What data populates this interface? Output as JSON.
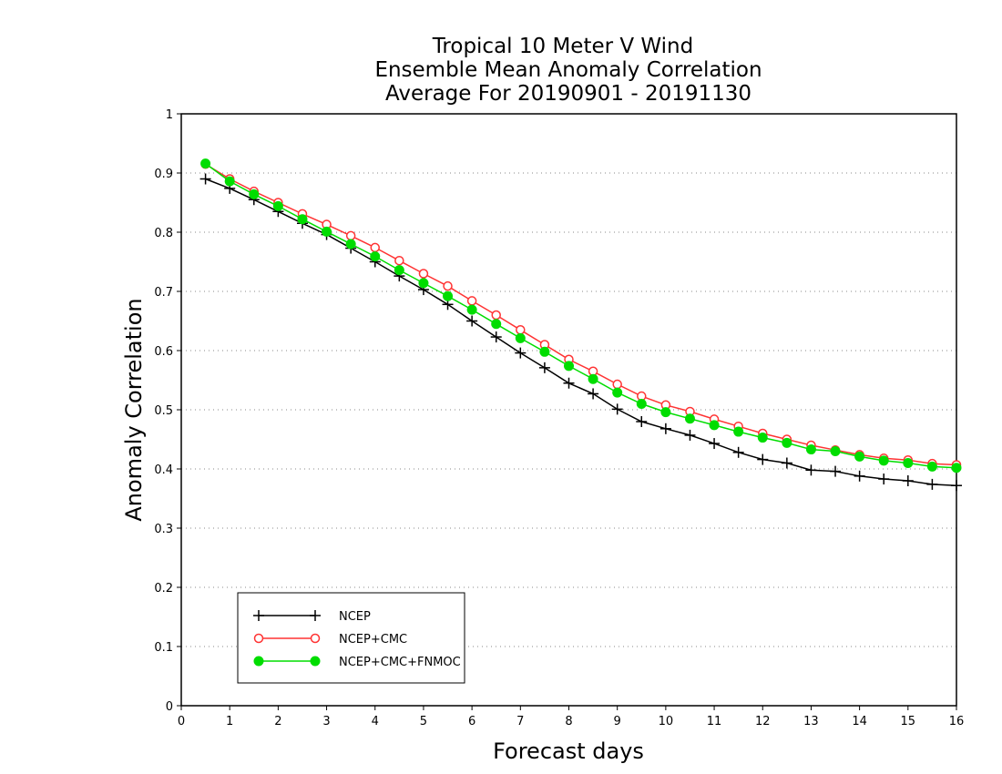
{
  "chart_data": {
    "type": "line",
    "title_lines": [
      "Tropical 10 Meter V Wind",
      "Ensemble Mean Anomaly Correlation",
      "Average For 20190901 - 20191130"
    ],
    "xlabel": "Forecast days",
    "ylabel": "Anomaly Correlation",
    "xlim": [
      0,
      16
    ],
    "ylim": [
      0,
      1
    ],
    "xticks": [
      "0",
      "1",
      "2",
      "3",
      "4",
      "5",
      "6",
      "7",
      "8",
      "9",
      "10",
      "11",
      "12",
      "13",
      "14",
      "15",
      "16"
    ],
    "yticks": [
      "0",
      "0.1",
      "0.2",
      "0.3",
      "0.4",
      "0.5",
      "0.6",
      "0.7",
      "0.8",
      "0.9",
      "1"
    ],
    "grid": "horizontal dotted",
    "legend_position": "bottom-left",
    "x": [
      0.5,
      1,
      1.5,
      2,
      2.5,
      3,
      3.5,
      4,
      4.5,
      5,
      5.5,
      6,
      6.5,
      7,
      7.5,
      8,
      8.5,
      9,
      9.5,
      10,
      10.5,
      11,
      11.5,
      12,
      12.5,
      13,
      13.5,
      14,
      14.5,
      15,
      15.5,
      16
    ],
    "series": [
      {
        "name": "NCEP",
        "color": "#000000",
        "marker": "plus",
        "values": [
          0.89,
          0.874,
          0.855,
          0.835,
          0.815,
          0.796,
          0.773,
          0.75,
          0.726,
          0.703,
          0.678,
          0.65,
          0.623,
          0.596,
          0.571,
          0.545,
          0.527,
          0.501,
          0.48,
          0.468,
          0.457,
          0.443,
          0.428,
          0.416,
          0.41,
          0.398,
          0.396,
          0.388,
          0.383,
          0.38,
          0.374,
          0.372
        ]
      },
      {
        "name": "NCEP+CMC",
        "color": "#ff3333",
        "marker": "open-circle",
        "values": [
          0.915,
          0.89,
          0.869,
          0.85,
          0.831,
          0.813,
          0.794,
          0.774,
          0.752,
          0.73,
          0.709,
          0.684,
          0.66,
          0.635,
          0.61,
          0.585,
          0.565,
          0.543,
          0.523,
          0.508,
          0.497,
          0.484,
          0.472,
          0.46,
          0.45,
          0.44,
          0.432,
          0.424,
          0.418,
          0.415,
          0.409,
          0.407
        ]
      },
      {
        "name": "NCEP+CMC+FNMOC",
        "color": "#00dd00",
        "marker": "filled-circle",
        "values": [
          0.916,
          0.886,
          0.864,
          0.844,
          0.822,
          0.801,
          0.78,
          0.759,
          0.736,
          0.714,
          0.692,
          0.669,
          0.645,
          0.621,
          0.598,
          0.574,
          0.552,
          0.529,
          0.51,
          0.496,
          0.485,
          0.474,
          0.463,
          0.453,
          0.444,
          0.433,
          0.43,
          0.421,
          0.414,
          0.41,
          0.404,
          0.402
        ]
      }
    ]
  }
}
